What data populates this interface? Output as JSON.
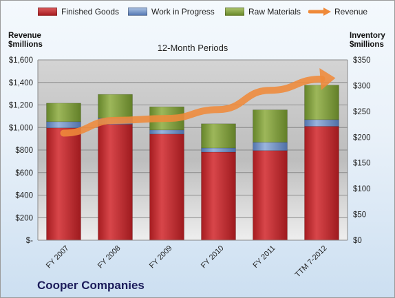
{
  "legend": {
    "finished": "Finished Goods",
    "wip": "Work in Progress",
    "raw": "Raw Materials",
    "revenue": "Revenue"
  },
  "colors": {
    "finished": "#c0262a",
    "wip": "#6d8fc6",
    "raw": "#7d9a3b",
    "revenue": "#ef8a3a"
  },
  "chart_data": {
    "type": "bar",
    "title": "12-Month Periods",
    "ylabel_left": "Revenue $millions",
    "ylabel_right": "Inventory $millions",
    "categories": [
      "FY 2007",
      "FY 2008",
      "FY 2009",
      "FY 2010",
      "FY 2011",
      "TTM 7-2012"
    ],
    "left_axis": {
      "ylim": [
        0,
        1600
      ],
      "ticks": [
        {
          "value": 0,
          "label": "$-"
        },
        {
          "value": 200,
          "label": "$200"
        },
        {
          "value": 400,
          "label": "$400"
        },
        {
          "value": 600,
          "label": "$600"
        },
        {
          "value": 800,
          "label": "$800"
        },
        {
          "value": 1000,
          "label": "$1,000"
        },
        {
          "value": 1200,
          "label": "$1,200"
        },
        {
          "value": 1400,
          "label": "$1,400"
        },
        {
          "value": 1600,
          "label": "$1,600"
        }
      ]
    },
    "right_axis": {
      "ylim": [
        0,
        350
      ],
      "ticks": [
        {
          "value": 0,
          "label": "$0"
        },
        {
          "value": 50,
          "label": "$50"
        },
        {
          "value": 100,
          "label": "$100"
        },
        {
          "value": 150,
          "label": "$150"
        },
        {
          "value": 200,
          "label": "$200"
        },
        {
          "value": 250,
          "label": "$250"
        },
        {
          "value": 300,
          "label": "$300"
        },
        {
          "value": 350,
          "label": "$350"
        }
      ]
    },
    "series": [
      {
        "name": "Finished Goods",
        "axis": "right",
        "stacked": true,
        "values": [
          218,
          225,
          206,
          171,
          174,
          221
        ]
      },
      {
        "name": "Work in Progress",
        "axis": "right",
        "stacked": true,
        "values": [
          12,
          12,
          8,
          8,
          16,
          13
        ]
      },
      {
        "name": "Raw Materials",
        "axis": "right",
        "stacked": true,
        "values": [
          36,
          46,
          45,
          47,
          63,
          67
        ]
      },
      {
        "name": "Revenue",
        "axis": "left",
        "type": "line",
        "values": [
          950,
          1063,
          1080,
          1159,
          1330,
          1430
        ]
      }
    ],
    "grid": true,
    "legend_position": "top"
  },
  "footer": {
    "company": "Cooper Companies"
  }
}
